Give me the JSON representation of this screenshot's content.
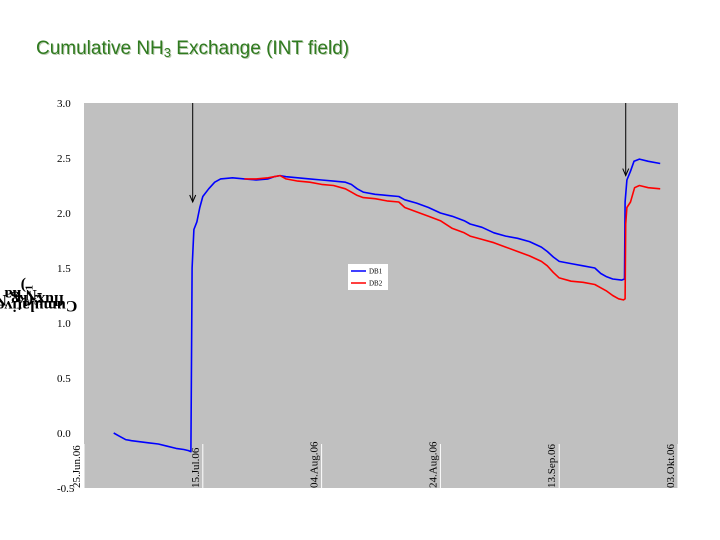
{
  "title": {
    "prefix": "Cumulative NH",
    "sub": "3",
    "suffix": " Exchange (INT field)"
  },
  "chart_data": {
    "type": "line",
    "title": "Cumulative NH3 Exchange (INT field)",
    "ylabel": {
      "p1": "Cumulative NH",
      "s1": "3",
      "p2": " flux (kg NH",
      "s2": "3",
      "p3": "-N ha",
      "sup": "-1",
      "p4": ")"
    },
    "ylim": [
      -0.5,
      3.0
    ],
    "yticks": [
      "3.0",
      "2.5",
      "2.0",
      "1.5",
      "1.0",
      "0.5",
      "0.0",
      "-0.5"
    ],
    "yticks_values": [
      3.0,
      2.5,
      2.0,
      1.5,
      1.0,
      0.5,
      0.0,
      -0.5
    ],
    "xlim": [
      "2006-06-25",
      "2006-10-03"
    ],
    "xticks": [
      "25.Jun.06",
      "15.Jul.06",
      "04.Aug.06",
      "24.Aug.06",
      "13.Sep.06",
      "03.Okt.06"
    ],
    "xticks_days": [
      0,
      20,
      40,
      60,
      80,
      100
    ],
    "grid": false,
    "background": "#c0c0c0",
    "legend_position": "center",
    "annotations": [
      {
        "type": "arrow",
        "x_day": 18.3,
        "y_from": 3.0,
        "y_to": 2.1
      },
      {
        "type": "arrow",
        "x_day": 91.2,
        "y_from": 3.0,
        "y_to": 2.34
      }
    ],
    "series": [
      {
        "name": "DB1",
        "color": "#0000ff",
        "points": [
          [
            5.0,
            0.0
          ],
          [
            6.0,
            -0.03
          ],
          [
            7.0,
            -0.06
          ],
          [
            8.0,
            -0.07
          ],
          [
            9.5,
            -0.08
          ],
          [
            11.0,
            -0.09
          ],
          [
            12.5,
            -0.1
          ],
          [
            14.0,
            -0.12
          ],
          [
            15.5,
            -0.14
          ],
          [
            16.8,
            -0.15
          ],
          [
            17.6,
            -0.16
          ],
          [
            18.0,
            -0.17
          ],
          [
            18.2,
            1.5
          ],
          [
            18.5,
            1.85
          ],
          [
            19.0,
            1.92
          ],
          [
            19.5,
            2.05
          ],
          [
            20.0,
            2.15
          ],
          [
            21.0,
            2.22
          ],
          [
            22.0,
            2.28
          ],
          [
            23.0,
            2.31
          ],
          [
            25.0,
            2.32
          ],
          [
            27.0,
            2.31
          ],
          [
            29.0,
            2.3
          ],
          [
            31.0,
            2.31
          ],
          [
            32.0,
            2.33
          ],
          [
            33.0,
            2.34
          ],
          [
            34.0,
            2.33
          ],
          [
            36.0,
            2.32
          ],
          [
            38.0,
            2.31
          ],
          [
            40.0,
            2.3
          ],
          [
            42.0,
            2.29
          ],
          [
            44.0,
            2.28
          ],
          [
            45.0,
            2.26
          ],
          [
            46.0,
            2.22
          ],
          [
            47.0,
            2.19
          ],
          [
            49.0,
            2.17
          ],
          [
            51.0,
            2.16
          ],
          [
            53.0,
            2.15
          ],
          [
            54.0,
            2.12
          ],
          [
            56.0,
            2.09
          ],
          [
            58.0,
            2.05
          ],
          [
            60.0,
            2.0
          ],
          [
            62.0,
            1.97
          ],
          [
            64.0,
            1.93
          ],
          [
            65.0,
            1.9
          ],
          [
            67.0,
            1.87
          ],
          [
            69.0,
            1.82
          ],
          [
            71.0,
            1.79
          ],
          [
            73.0,
            1.77
          ],
          [
            75.0,
            1.74
          ],
          [
            77.0,
            1.69
          ],
          [
            78.0,
            1.65
          ],
          [
            79.0,
            1.6
          ],
          [
            80.0,
            1.56
          ],
          [
            82.0,
            1.54
          ],
          [
            84.0,
            1.52
          ],
          [
            86.0,
            1.5
          ],
          [
            87.0,
            1.45
          ],
          [
            88.0,
            1.42
          ],
          [
            89.0,
            1.4
          ],
          [
            90.5,
            1.39
          ],
          [
            91.0,
            1.4
          ],
          [
            91.1,
            2.1
          ],
          [
            91.4,
            2.3
          ],
          [
            92.0,
            2.38
          ],
          [
            92.6,
            2.47
          ],
          [
            93.5,
            2.49
          ],
          [
            95.0,
            2.47
          ],
          [
            97.0,
            2.45
          ]
        ]
      },
      {
        "name": "DB2",
        "color": "#ff0000",
        "points": [
          [
            27.0,
            2.31
          ],
          [
            29.0,
            2.31
          ],
          [
            31.0,
            2.32
          ],
          [
            32.0,
            2.33
          ],
          [
            33.0,
            2.34
          ],
          [
            34.0,
            2.31
          ],
          [
            36.0,
            2.29
          ],
          [
            38.0,
            2.28
          ],
          [
            40.0,
            2.26
          ],
          [
            42.0,
            2.25
          ],
          [
            44.0,
            2.22
          ],
          [
            45.0,
            2.19
          ],
          [
            46.0,
            2.16
          ],
          [
            47.0,
            2.14
          ],
          [
            49.0,
            2.13
          ],
          [
            51.0,
            2.11
          ],
          [
            53.0,
            2.1
          ],
          [
            54.0,
            2.05
          ],
          [
            56.0,
            2.01
          ],
          [
            58.0,
            1.97
          ],
          [
            60.0,
            1.93
          ],
          [
            62.0,
            1.86
          ],
          [
            64.0,
            1.82
          ],
          [
            65.0,
            1.79
          ],
          [
            67.0,
            1.76
          ],
          [
            69.0,
            1.73
          ],
          [
            71.0,
            1.69
          ],
          [
            73.0,
            1.65
          ],
          [
            75.0,
            1.61
          ],
          [
            77.0,
            1.56
          ],
          [
            78.0,
            1.52
          ],
          [
            79.0,
            1.46
          ],
          [
            80.0,
            1.41
          ],
          [
            82.0,
            1.38
          ],
          [
            84.0,
            1.37
          ],
          [
            86.0,
            1.35
          ],
          [
            87.0,
            1.32
          ],
          [
            88.0,
            1.29
          ],
          [
            89.0,
            1.25
          ],
          [
            90.0,
            1.22
          ],
          [
            90.8,
            1.21
          ],
          [
            91.1,
            1.22
          ],
          [
            91.2,
            1.9
          ],
          [
            91.4,
            2.05
          ],
          [
            92.0,
            2.1
          ],
          [
            92.7,
            2.23
          ],
          [
            93.5,
            2.25
          ],
          [
            95.0,
            2.23
          ],
          [
            97.0,
            2.22
          ]
        ]
      }
    ]
  }
}
